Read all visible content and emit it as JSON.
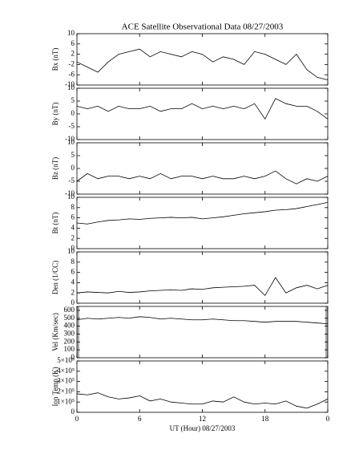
{
  "chart_data": [
    {
      "type": "line",
      "title": "ACE Satellite Observational Data   08/27/2003",
      "y_label": "Bx (nT)",
      "color": "#000000",
      "x": [
        0,
        1,
        2,
        3,
        4,
        5,
        6,
        7,
        8,
        9,
        10,
        11,
        12,
        13,
        14,
        15,
        16,
        17,
        18,
        19,
        20,
        21,
        22,
        23,
        24
      ],
      "values": [
        -1,
        -3,
        -5,
        -1,
        2,
        3,
        4,
        1,
        3,
        2,
        1,
        3,
        2,
        -1,
        1,
        0,
        -2,
        3,
        2,
        0,
        -2,
        2,
        -4,
        -7,
        -8
      ],
      "xlim": [
        0,
        24
      ],
      "ylim": [
        -10,
        10
      ],
      "yticks": [
        -10,
        -6,
        -2,
        2,
        6,
        10
      ]
    },
    {
      "type": "line",
      "y_label": "By (nT)",
      "color": "#000000",
      "x": [
        0,
        1,
        2,
        3,
        4,
        5,
        6,
        7,
        8,
        9,
        10,
        11,
        12,
        13,
        14,
        15,
        16,
        17,
        18,
        19,
        20,
        21,
        22,
        23,
        24
      ],
      "values": [
        3,
        2,
        3,
        1,
        3,
        2,
        2,
        3,
        1,
        2,
        2,
        4,
        2,
        3,
        2,
        3,
        2,
        4,
        -2,
        6,
        4,
        3,
        3,
        1,
        -2
      ],
      "xlim": [
        0,
        24
      ],
      "ylim": [
        -10,
        10
      ],
      "yticks": [
        -10,
        -5,
        0,
        5,
        10
      ]
    },
    {
      "type": "line",
      "y_label": "Bz (nT)",
      "color": "#000000",
      "x": [
        0,
        1,
        2,
        3,
        4,
        5,
        6,
        7,
        8,
        9,
        10,
        11,
        12,
        13,
        14,
        15,
        16,
        17,
        18,
        19,
        20,
        21,
        22,
        23,
        24
      ],
      "values": [
        -5,
        -2,
        -4,
        -3,
        -3,
        -4,
        -3,
        -4,
        -2,
        -4,
        -3,
        -3,
        -4,
        -3,
        -4,
        -4,
        -3,
        -4,
        -3,
        -1,
        -4,
        -6,
        -4,
        -5,
        -3
      ],
      "xlim": [
        0,
        24
      ],
      "ylim": [
        -10,
        10
      ],
      "yticks": [
        -10,
        -5,
        0,
        5,
        10
      ]
    },
    {
      "type": "line",
      "y_label": "Bt (nT)",
      "color": "#000000",
      "x": [
        0,
        1,
        2,
        3,
        4,
        5,
        6,
        7,
        8,
        9,
        10,
        11,
        12,
        13,
        14,
        15,
        16,
        17,
        18,
        19,
        20,
        21,
        22,
        23,
        24
      ],
      "values": [
        5,
        4.8,
        5.2,
        5.5,
        5.6,
        5.8,
        5.7,
        5.9,
        6,
        6.1,
        6,
        6.1,
        5.8,
        6,
        6.2,
        6.5,
        6.8,
        7,
        7.2,
        7.5,
        7.6,
        7.8,
        8.2,
        8.6,
        9
      ],
      "xlim": [
        0,
        24
      ],
      "ylim": [
        0,
        10
      ],
      "yticks": [
        0,
        2,
        4,
        6,
        8,
        10
      ]
    },
    {
      "type": "line",
      "y_label": "Den (1/CC)",
      "color": "#000000",
      "x": [
        0,
        1,
        2,
        3,
        4,
        5,
        6,
        7,
        8,
        9,
        10,
        11,
        12,
        13,
        14,
        15,
        16,
        17,
        18,
        19,
        20,
        21,
        22,
        23,
        24
      ],
      "values": [
        2,
        2.2,
        2.1,
        2,
        2.3,
        2.1,
        2.2,
        2.4,
        2.5,
        2.6,
        2.5,
        2.8,
        2.7,
        3,
        3.1,
        3.2,
        3.3,
        3.5,
        1.5,
        5,
        2,
        3,
        3.5,
        2.8,
        3.5
      ],
      "xlim": [
        0,
        24
      ],
      "ylim": [
        0,
        10
      ],
      "yticks": [
        0,
        2,
        4,
        6,
        8,
        10
      ]
    },
    {
      "type": "line",
      "y_label": "Vel (Km/sec)",
      "color": "#000000",
      "x": [
        0,
        1,
        2,
        3,
        4,
        5,
        6,
        7,
        8,
        9,
        10,
        11,
        12,
        13,
        14,
        15,
        16,
        17,
        18,
        19,
        20,
        21,
        22,
        23,
        24
      ],
      "values": [
        480,
        500,
        490,
        500,
        510,
        500,
        520,
        510,
        490,
        500,
        490,
        480,
        480,
        490,
        480,
        470,
        470,
        460,
        450,
        460,
        460,
        460,
        450,
        440,
        430
      ],
      "xlim": [
        0,
        24
      ],
      "ylim": [
        0,
        650
      ],
      "yticks": [
        0,
        100,
        200,
        300,
        400,
        500,
        600
      ]
    },
    {
      "type": "line",
      "y_label": "Ion Temp (K)",
      "x_label": "UT (Hour)  08/27/2003",
      "color": "#000000",
      "x": [
        0,
        1,
        2,
        3,
        4,
        5,
        6,
        7,
        8,
        9,
        10,
        11,
        12,
        13,
        14,
        15,
        16,
        17,
        18,
        19,
        20,
        21,
        22,
        23,
        24
      ],
      "values": [
        180000,
        170000,
        190000,
        150000,
        130000,
        140000,
        160000,
        110000,
        130000,
        100000,
        90000,
        80000,
        80000,
        110000,
        100000,
        150000,
        100000,
        80000,
        90000,
        80000,
        110000,
        60000,
        40000,
        80000,
        130000
      ],
      "xlim": [
        0,
        24
      ],
      "ylim": [
        0,
        500000
      ],
      "yticks": [
        0,
        {
          "value": 100000,
          "label": "1×10⁵"
        },
        {
          "value": 200000,
          "label": "2×10⁵"
        },
        {
          "value": 300000,
          "label": "3×10⁵"
        },
        {
          "value": 400000,
          "label": "4×10⁵"
        },
        {
          "value": 500000,
          "label": "5×10⁵"
        }
      ],
      "xticks": [
        0,
        6,
        12,
        18,
        {
          "value": 24,
          "label": "0"
        }
      ]
    }
  ]
}
